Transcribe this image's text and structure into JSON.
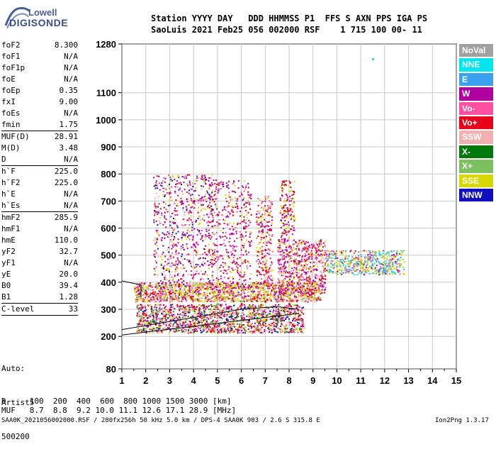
{
  "brand": {
    "top": "Lowell",
    "bottom": "DIGISONDE"
  },
  "header": {
    "line1": "Station YYYY DAY   DDD HHMMSS P1  FFS S AXN PPS IGA PS",
    "line2": "SaoLuis 2021 Feb25 056 002000 RSF    1 715 100 00- 11"
  },
  "params": [
    {
      "name": "foF2",
      "value": "8.300"
    },
    {
      "name": "foF1",
      "value": "N/A"
    },
    {
      "name": "foF1p",
      "value": "N/A"
    },
    {
      "name": "foE",
      "value": "N/A"
    },
    {
      "name": "foEp",
      "value": "0.35"
    },
    {
      "name": "fxI",
      "value": "9.00"
    },
    {
      "name": "foEs",
      "value": "N/A"
    },
    {
      "name": "fmin",
      "value": "1.75",
      "sep": true
    },
    {
      "name": "MUF(D)",
      "value": "28.91"
    },
    {
      "name": "M(D)",
      "value": "3.48"
    },
    {
      "name": "D",
      "value": "N/A",
      "sep": true
    },
    {
      "name": "h`F",
      "value": "225.0"
    },
    {
      "name": "h`F2",
      "value": "225.0"
    },
    {
      "name": "h`E",
      "value": "N/A"
    },
    {
      "name": "h`Es",
      "value": "N/A",
      "sep": true
    },
    {
      "name": "hmF2",
      "value": "285.9"
    },
    {
      "name": "hmF1",
      "value": "N/A"
    },
    {
      "name": "hmE",
      "value": "110.0"
    },
    {
      "name": "yF2",
      "value": "32.7"
    },
    {
      "name": "yF1",
      "value": "N/A"
    },
    {
      "name": "yE",
      "value": "20.0"
    },
    {
      "name": "B0",
      "value": "39.4"
    },
    {
      "name": "B1",
      "value": "1.28",
      "sep": true
    },
    {
      "name": "C-level",
      "value": "33",
      "sep": true
    }
  ],
  "autoscale": [
    "Auto:",
    "Artist5",
    "500200"
  ],
  "footer": {
    "d_row": "D     100  200  400  600  800 1000 1500 3000 [km]",
    "muf_row": "MUF   8.7  8.8  9.2 10.0 11.1 12.6 17.1 28.9 [MHz]",
    "info": "SAA0K_2021056002000.RSF / 280fx256h 50 kHz 5.0 km / DPS-4 SAA0K 903 / 2.6 S 315.8 E",
    "version": "Ion2Png 1.3.17"
  },
  "legend": [
    {
      "label": "NoVal",
      "color": "#a0a0a0"
    },
    {
      "label": "NNE",
      "color": "#00e5ee"
    },
    {
      "label": "E",
      "color": "#3aa0f0"
    },
    {
      "label": "W",
      "color": "#b000a0"
    },
    {
      "label": "Vo-",
      "color": "#ff4fa0"
    },
    {
      "label": "Vo+",
      "color": "#e8001a"
    },
    {
      "label": "SSW",
      "color": "#f2b0b0"
    },
    {
      "label": "X-",
      "color": "#00780a"
    },
    {
      "label": "X+",
      "color": "#7cc060"
    },
    {
      "label": "SSE",
      "color": "#d8d800"
    },
    {
      "label": "NNW",
      "color": "#1010c0"
    }
  ],
  "chart_data": {
    "type": "scatter",
    "xlim": [
      1,
      15
    ],
    "ylim": [
      80,
      1280
    ],
    "xticks": [
      "1",
      "2",
      "3",
      "4",
      "5",
      "6",
      "7",
      "8",
      "9",
      "10",
      "11",
      "12",
      "13",
      "14",
      "15"
    ],
    "yticks": [
      "80",
      "200",
      "300",
      "400",
      "500",
      "600",
      "700",
      "800",
      "900",
      "1000",
      "1100",
      "1280"
    ],
    "grid": true,
    "series": [
      {
        "name": "W",
        "color": "#b000a0",
        "points": [
          [
            3.5,
            700
          ],
          [
            4.5,
            780
          ],
          [
            5.0,
            650
          ],
          [
            6.1,
            600
          ],
          [
            7.0,
            520
          ],
          [
            7.8,
            560
          ],
          [
            8.2,
            480
          ],
          [
            3.2,
            620
          ],
          [
            4.0,
            540
          ],
          [
            5.6,
            580
          ]
        ]
      },
      {
        "name": "SSE",
        "color": "#d8d800",
        "points": [
          [
            2.5,
            380
          ],
          [
            3.5,
            390
          ],
          [
            4.5,
            395
          ],
          [
            5.5,
            380
          ],
          [
            6.5,
            390
          ],
          [
            7.8,
            700
          ],
          [
            10.5,
            470
          ],
          [
            11.0,
            480
          ]
        ]
      },
      {
        "name": "Vo+",
        "color": "#e8001a",
        "points": [
          [
            2.0,
            280
          ],
          [
            3.0,
            300
          ],
          [
            4.0,
            310
          ],
          [
            5.0,
            320
          ],
          [
            6.0,
            320
          ],
          [
            7.0,
            330
          ],
          [
            8.0,
            320
          ],
          [
            9.0,
            360
          ],
          [
            2.0,
            360
          ],
          [
            3.0,
            360
          ]
        ]
      },
      {
        "name": "NNE",
        "color": "#00e5ee",
        "points": [
          [
            11.5,
            1225
          ],
          [
            12.0,
            450
          ],
          [
            12.3,
            440
          ],
          [
            11.8,
            470
          ]
        ]
      },
      {
        "name": "X+",
        "color": "#7cc060",
        "points": [
          [
            5.0,
            320
          ],
          [
            6.0,
            330
          ],
          [
            10.5,
            460
          ],
          [
            11.0,
            475
          ]
        ]
      }
    ]
  }
}
